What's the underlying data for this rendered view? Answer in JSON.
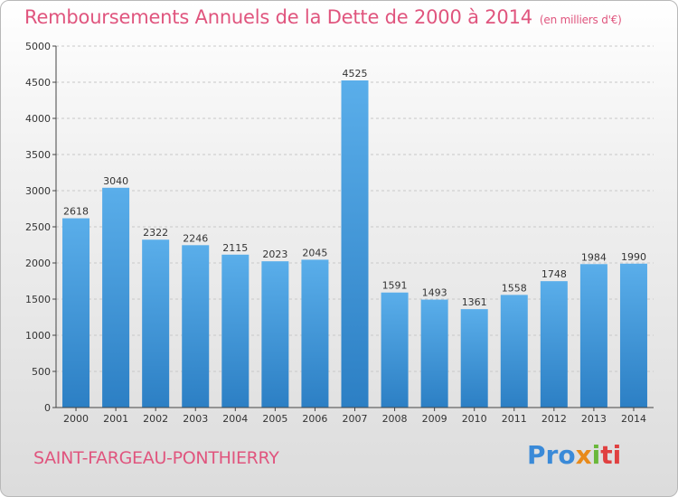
{
  "header": {
    "title": "Remboursements Annuels de la Dette de 2000 à 2014",
    "unit": "(en milliers d'€)"
  },
  "footer": {
    "city": "SAINT-FARGEAU-PONTHIERRY",
    "logo_parts": [
      "Pro",
      "x",
      "i",
      "ti"
    ]
  },
  "colors": {
    "title": "#e0557e",
    "bar_top": "#5aaeea",
    "bar_bottom": "#2c7fc4",
    "axis": "#444444"
  },
  "chart_data": {
    "type": "bar",
    "categories": [
      "2000",
      "2001",
      "2002",
      "2003",
      "2004",
      "2005",
      "2006",
      "2007",
      "2008",
      "2009",
      "2010",
      "2011",
      "2012",
      "2013",
      "2014"
    ],
    "values": [
      2618,
      3040,
      2322,
      2246,
      2115,
      2023,
      2045,
      4525,
      1591,
      1493,
      1361,
      1558,
      1748,
      1984,
      1990
    ],
    "title": "Remboursements Annuels de la Dette de 2000 à 2014",
    "xlabel": "",
    "ylabel": "",
    "ylim": [
      0,
      5000
    ],
    "yticks": [
      0,
      500,
      1000,
      1500,
      2000,
      2500,
      3000,
      3500,
      4000,
      4500,
      5000
    ],
    "grid": true,
    "legend": "none"
  }
}
